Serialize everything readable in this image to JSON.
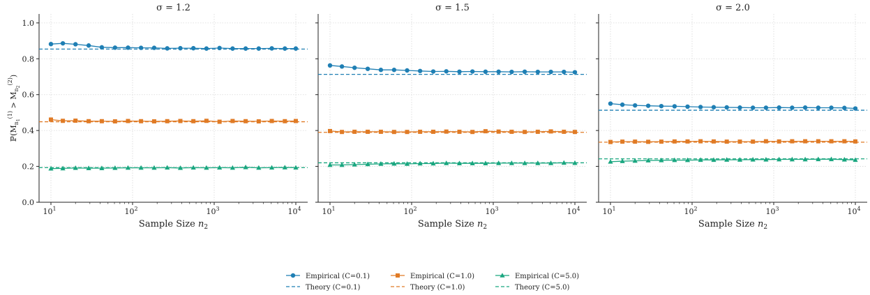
{
  "chart_data": {
    "type": "line",
    "ylabel": "ℙ(M",
    "xlabel_prefix": "Sample Size ",
    "xlabel_var": "n",
    "xlabel_sub": "2",
    "ylim": [
      0,
      1.05
    ],
    "yticks": [
      "0.0",
      "0.2",
      "0.4",
      "0.6",
      "0.8",
      "1.0"
    ],
    "x": [
      10,
      14,
      20,
      29,
      42,
      61,
      88,
      127,
      184,
      266,
      385,
      556,
      804,
      1163,
      1681,
      2430,
      3513,
      5079,
      7343,
      10000
    ],
    "xticks": [
      {
        "value": 10,
        "base": "10",
        "exp": "1"
      },
      {
        "value": 100,
        "base": "10",
        "exp": "2"
      },
      {
        "value": 1000,
        "base": "10",
        "exp": "3"
      },
      {
        "value": 10000,
        "base": "10",
        "exp": "4"
      }
    ],
    "panels": [
      {
        "title": "σ = 1.2",
        "series": [
          {
            "key": "c01",
            "values": [
              0.882,
              0.886,
              0.881,
              0.874,
              0.864,
              0.862,
              0.862,
              0.861,
              0.861,
              0.858,
              0.859,
              0.859,
              0.857,
              0.86,
              0.857,
              0.857,
              0.857,
              0.858,
              0.857,
              0.857
            ],
            "theory": 0.854
          },
          {
            "key": "c1",
            "values": [
              0.461,
              0.454,
              0.455,
              0.452,
              0.452,
              0.451,
              0.453,
              0.452,
              0.451,
              0.452,
              0.453,
              0.452,
              0.454,
              0.449,
              0.453,
              0.452,
              0.451,
              0.453,
              0.452,
              0.453
            ],
            "theory": 0.449
          },
          {
            "key": "c5",
            "values": [
              0.188,
              0.189,
              0.191,
              0.19,
              0.19,
              0.191,
              0.192,
              0.192,
              0.192,
              0.193,
              0.191,
              0.193,
              0.192,
              0.193,
              0.192,
              0.195,
              0.192,
              0.193,
              0.194,
              0.193
            ],
            "theory": 0.193
          }
        ]
      },
      {
        "title": "σ = 1.5",
        "series": [
          {
            "key": "c01",
            "values": [
              0.763,
              0.757,
              0.75,
              0.744,
              0.738,
              0.738,
              0.735,
              0.732,
              0.729,
              0.73,
              0.728,
              0.729,
              0.728,
              0.728,
              0.727,
              0.728,
              0.727,
              0.727,
              0.727,
              0.725
            ],
            "theory": 0.713
          },
          {
            "key": "c1",
            "values": [
              0.397,
              0.392,
              0.393,
              0.393,
              0.393,
              0.392,
              0.392,
              0.393,
              0.393,
              0.394,
              0.393,
              0.392,
              0.396,
              0.394,
              0.393,
              0.392,
              0.393,
              0.395,
              0.393,
              0.392
            ],
            "theory": 0.39
          },
          {
            "key": "c5",
            "values": [
              0.208,
              0.208,
              0.21,
              0.212,
              0.214,
              0.215,
              0.214,
              0.216,
              0.216,
              0.218,
              0.217,
              0.217,
              0.217,
              0.218,
              0.218,
              0.218,
              0.218,
              0.218,
              0.22,
              0.219
            ],
            "theory": 0.22
          }
        ]
      },
      {
        "title": "σ = 2.0",
        "series": [
          {
            "key": "c01",
            "values": [
              0.55,
              0.544,
              0.54,
              0.538,
              0.536,
              0.535,
              0.533,
              0.531,
              0.53,
              0.529,
              0.528,
              0.527,
              0.527,
              0.528,
              0.527,
              0.528,
              0.527,
              0.527,
              0.526,
              0.523
            ],
            "theory": 0.513
          },
          {
            "key": "c1",
            "values": [
              0.336,
              0.338,
              0.338,
              0.337,
              0.338,
              0.339,
              0.339,
              0.34,
              0.339,
              0.338,
              0.338,
              0.338,
              0.34,
              0.339,
              0.34,
              0.34,
              0.34,
              0.34,
              0.34,
              0.339
            ],
            "theory": 0.335
          },
          {
            "key": "c5",
            "values": [
              0.226,
              0.229,
              0.231,
              0.233,
              0.234,
              0.235,
              0.235,
              0.236,
              0.236,
              0.237,
              0.237,
              0.238,
              0.238,
              0.239,
              0.239,
              0.239,
              0.24,
              0.24,
              0.238,
              0.236
            ],
            "theory": 0.242
          }
        ]
      }
    ],
    "legend": {
      "placement": "bottom-center",
      "entries": [
        {
          "label": "Empirical (C=0.1)",
          "key": "c01",
          "kind": "empirical"
        },
        {
          "label": "Theory (C=0.1)",
          "key": "c01",
          "kind": "theory"
        },
        {
          "label": "Empirical (C=1.0)",
          "key": "c1",
          "kind": "empirical"
        },
        {
          "label": "Theory (C=1.0)",
          "key": "c1",
          "kind": "theory"
        },
        {
          "label": "Empirical (C=5.0)",
          "key": "c5",
          "kind": "empirical"
        },
        {
          "label": "Theory (C=5.0)",
          "key": "c5",
          "kind": "theory"
        }
      ]
    },
    "styles": {
      "c01": {
        "color": "#1f7fb4",
        "marker": "circle"
      },
      "c1": {
        "color": "#e07b26",
        "marker": "square"
      },
      "c5": {
        "color": "#19a67f",
        "marker": "triangle"
      }
    },
    "grid": true
  }
}
